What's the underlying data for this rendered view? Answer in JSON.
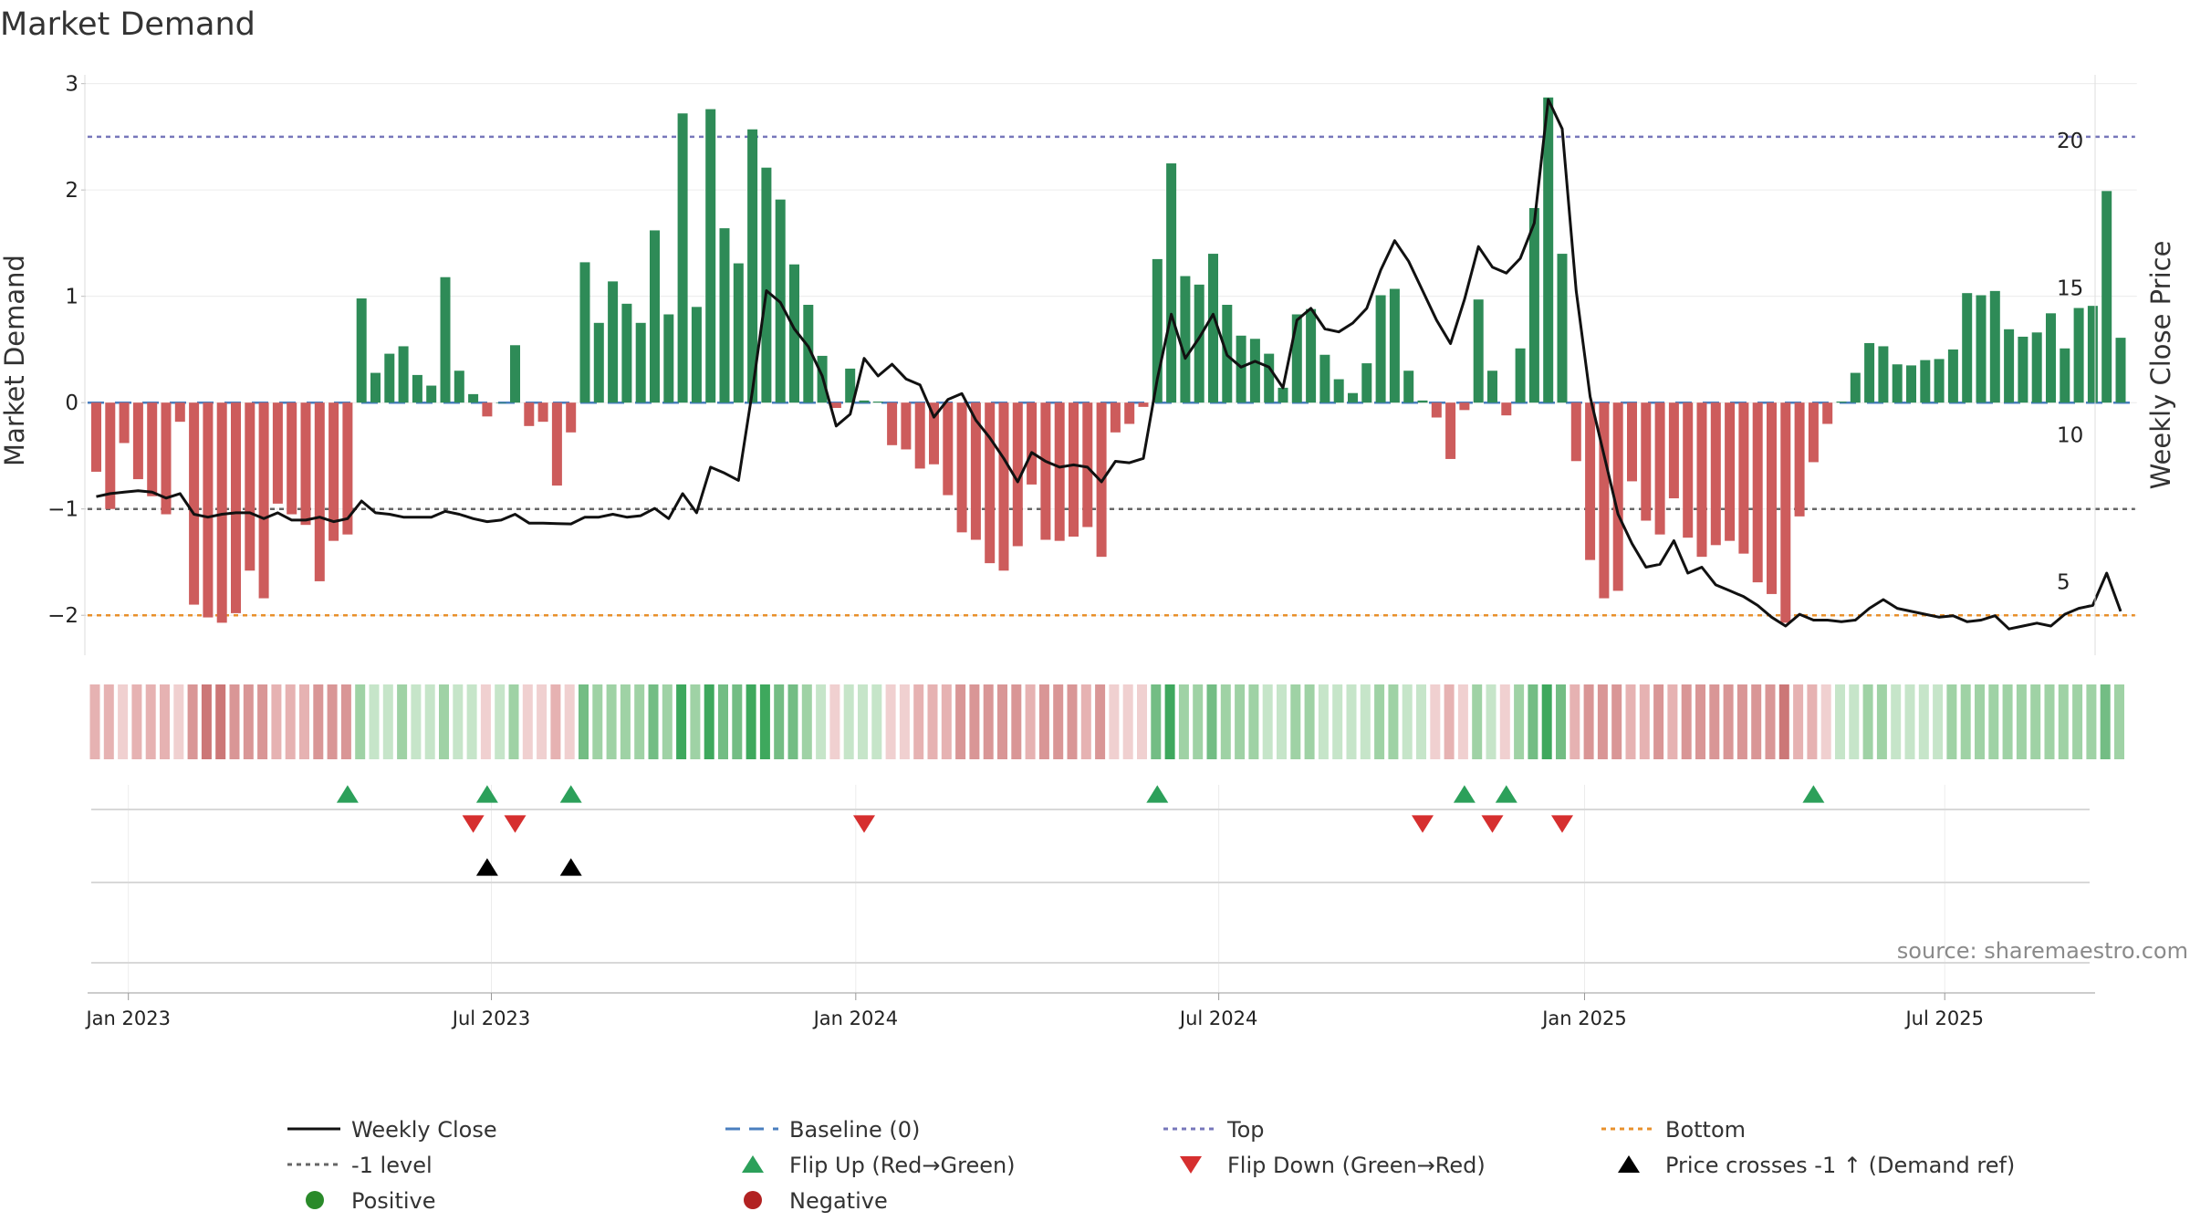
{
  "chart_data": {
    "type": "bar",
    "title": "Market Demand",
    "ylabel": "Market Demand",
    "y2label": "Weekly Close Price",
    "ylim": [
      -2.35,
      3.1
    ],
    "y2lim": [
      2.6,
      22.3
    ],
    "yticks": [
      3,
      2,
      1,
      0,
      -1,
      -2
    ],
    "ytick_labels": [
      "3",
      "2",
      "1",
      "0",
      "−1",
      "−2"
    ],
    "y2ticks": [
      20,
      15,
      10,
      5
    ],
    "y2tick_labels": [
      "20",
      "15",
      "10",
      "5"
    ],
    "date_ticks": [
      {
        "label": "Jan 2023",
        "week": 2.3
      },
      {
        "label": "Jul 2023",
        "week": 28.3
      },
      {
        "label": "Jan 2024",
        "week": 54.4
      },
      {
        "label": "Jul 2024",
        "week": 80.4
      },
      {
        "label": "Jan 2025",
        "week": 106.6
      },
      {
        "label": "Jul 2025",
        "week": 132.4
      }
    ],
    "reference_lines": [
      {
        "name": "Top",
        "value": 2.5,
        "color": "#7777bb"
      },
      {
        "name": "-1 level",
        "value": -1,
        "color": "#666666"
      },
      {
        "name": "Bottom",
        "value": -2,
        "color": "#e8902c"
      },
      {
        "name": "Baseline (0)",
        "value": 0,
        "color": "#4a7fbf"
      }
    ],
    "series": [
      {
        "name": "Market Demand",
        "values": [
          -0.65,
          -1.0,
          -0.38,
          -0.72,
          -0.88,
          -1.05,
          -0.18,
          -1.9,
          -2.02,
          -2.07,
          -1.98,
          -1.58,
          -1.84,
          -0.95,
          -1.05,
          -1.15,
          -1.68,
          -1.3,
          -1.24,
          0.98,
          0.28,
          0.46,
          0.53,
          0.26,
          0.16,
          1.18,
          0.3,
          0.08,
          -0.13,
          0,
          0.54,
          -0.22,
          -0.18,
          -0.78,
          -0.28,
          1.32,
          0.75,
          1.14,
          0.93,
          0.75,
          1.62,
          0.83,
          2.72,
          0.9,
          2.76,
          1.64,
          1.31,
          2.57,
          2.21,
          1.91,
          1.3,
          0.92,
          0.44,
          -0.05,
          0.32,
          0.02,
          0.01,
          -0.4,
          -0.44,
          -0.62,
          -0.58,
          -0.87,
          -1.22,
          -1.29,
          -1.51,
          -1.58,
          -1.35,
          -0.77,
          -1.29,
          -1.3,
          -1.26,
          -1.17,
          -1.45,
          -0.28,
          -0.2,
          -0.04,
          1.35,
          2.25,
          1.19,
          1.11,
          1.4,
          0.92,
          0.63,
          0.6,
          0.46,
          0.14,
          0.83,
          0.88,
          0.45,
          0.22,
          0.09,
          0.37,
          1.01,
          1.07,
          0.3,
          0.02,
          -0.14,
          -0.53,
          -0.07,
          0.97,
          0.3,
          -0.12,
          0.51,
          1.83,
          2.87,
          1.4,
          -0.55,
          -1.48,
          -1.84,
          -1.77,
          -0.74,
          -1.11,
          -1.24,
          -0.9,
          -1.27,
          -1.45,
          -1.34,
          -1.3,
          -1.42,
          -1.69,
          -1.8,
          -2.07,
          -1.07,
          -0.56,
          -0.2,
          0.01,
          0.28,
          0.56,
          0.53,
          0.36,
          0.35,
          0.4,
          0.41,
          0.5,
          1.03,
          1.01,
          1.05,
          0.69,
          0.62,
          0.66,
          0.84,
          0.51,
          0.89,
          0.91,
          1.99,
          0.61
        ]
      },
      {
        "name": "Weekly Close",
        "values": [
          7.9,
          8.0,
          8.05,
          8.1,
          8.05,
          7.85,
          8.0,
          7.3,
          7.2,
          7.3,
          7.35,
          7.35,
          7.15,
          7.35,
          7.1,
          7.1,
          7.2,
          7.05,
          7.15,
          7.75,
          7.35,
          7.3,
          7.2,
          7.2,
          7.2,
          7.4,
          7.3,
          7.15,
          7.05,
          7.1,
          7.3,
          7.0,
          7.0,
          6.98,
          6.97,
          7.2,
          7.2,
          7.3,
          7.2,
          7.25,
          7.5,
          7.15,
          8.0,
          7.35,
          8.9,
          8.7,
          8.45,
          11.5,
          14.9,
          14.5,
          13.6,
          13.0,
          12.0,
          10.3,
          10.7,
          12.6,
          12.0,
          12.4,
          11.9,
          11.7,
          10.6,
          11.2,
          11.4,
          10.5,
          9.9,
          9.2,
          8.4,
          9.4,
          9.1,
          8.9,
          8.98,
          8.9,
          8.4,
          9.1,
          9.05,
          9.2,
          11.9,
          14.1,
          12.6,
          13.3,
          14.1,
          12.7,
          12.3,
          12.5,
          12.3,
          11.6,
          13.9,
          14.3,
          13.6,
          13.5,
          13.8,
          14.3,
          15.6,
          16.6,
          15.9,
          14.9,
          13.9,
          13.1,
          14.6,
          16.4,
          15.7,
          15.5,
          16.0,
          17.2,
          21.4,
          20.4,
          14.9,
          11.3,
          9.3,
          7.3,
          6.3,
          5.5,
          5.6,
          6.4,
          5.3,
          5.5,
          4.9,
          4.7,
          4.5,
          4.2,
          3.8,
          3.5,
          3.9,
          3.7,
          3.7,
          3.65,
          3.7,
          4.1,
          4.4,
          4.1,
          4.0,
          3.9,
          3.8,
          3.85,
          3.65,
          3.7,
          3.85,
          3.4,
          3.5,
          3.6,
          3.5,
          3.9,
          4.1,
          4.2,
          5.3,
          4.0
        ]
      }
    ],
    "flip_up_weeks": [
      18,
      28,
      34,
      76,
      98,
      101,
      123
    ],
    "flip_down_weeks": [
      27,
      30,
      55,
      95,
      100,
      105
    ],
    "price_cross_weeks": [
      28,
      34
    ],
    "source": "source: sharemaestro.com",
    "legend": [
      {
        "label": "Weekly Close",
        "kind": "line",
        "color": "#111111"
      },
      {
        "label": "Baseline (0)",
        "kind": "dash",
        "color": "#4a7fbf"
      },
      {
        "label": "Top",
        "kind": "dot",
        "color": "#7777bb"
      },
      {
        "label": "Bottom",
        "kind": "dot",
        "color": "#e8902c"
      },
      {
        "label": "-1 level",
        "kind": "dot",
        "color": "#666666"
      },
      {
        "label": "Flip Up (Red→Green)",
        "kind": "tri-up",
        "color": "#2ca05a"
      },
      {
        "label": "Flip Down (Green→Red)",
        "kind": "tri-down",
        "color": "#d62f2f"
      },
      {
        "label": "Price crosses -1 ↑ (Demand ref)",
        "kind": "tri-up",
        "color": "#000000"
      },
      {
        "label": "Positive",
        "kind": "circle",
        "color": "#2a8a2a"
      },
      {
        "label": "Negative",
        "kind": "circle",
        "color": "#b22222"
      }
    ],
    "colors": {
      "positive_bar": "#2e8b57",
      "negative_bar": "#cd5c5c",
      "price_line": "#111111"
    }
  }
}
